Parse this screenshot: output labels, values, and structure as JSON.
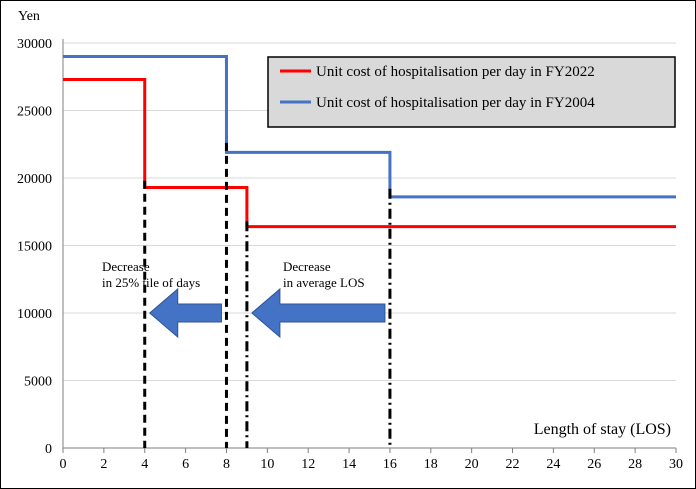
{
  "chart_data": {
    "type": "line",
    "step": true,
    "ylabel": "Yen",
    "xlabel": "Length of stay (LOS)",
    "xlim": [
      0,
      30
    ],
    "ylim": [
      0,
      30000
    ],
    "xticks": [
      0,
      2,
      4,
      6,
      8,
      10,
      12,
      14,
      16,
      18,
      20,
      22,
      24,
      26,
      28,
      30
    ],
    "yticks": [
      0,
      5000,
      10000,
      15000,
      20000,
      25000,
      30000
    ],
    "grid": "horizontal",
    "legend_position": "top-right",
    "series": [
      {
        "name": "Unit cost of hospitalisation per day in FY2022",
        "color": "#ff0000",
        "points": [
          [
            0,
            27300
          ],
          [
            4,
            27300
          ],
          [
            4,
            19300
          ],
          [
            9,
            19300
          ],
          [
            9,
            16400
          ],
          [
            30,
            16400
          ]
        ]
      },
      {
        "name": "Unit cost of hospitalisation per day in FY2004",
        "color": "#4472c4",
        "points": [
          [
            0,
            29000
          ],
          [
            8,
            29000
          ],
          [
            8,
            21900
          ],
          [
            16,
            21900
          ],
          [
            16,
            18600
          ],
          [
            30,
            18600
          ]
        ]
      }
    ],
    "reference_lines": [
      {
        "x": 4,
        "style": "dashed",
        "color": "#000000"
      },
      {
        "x": 8,
        "style": "dashed",
        "color": "#000000"
      },
      {
        "x": 9,
        "style": "dashdot",
        "color": "#000000"
      },
      {
        "x": 16,
        "style": "dashdot",
        "color": "#000000"
      }
    ],
    "annotations": [
      {
        "lines": [
          "Decrease",
          "in 25% tile  of days"
        ],
        "arrow": {
          "from_x": 8,
          "to_x": 4,
          "y": 10000,
          "color": "#4472c4",
          "direction": "left"
        }
      },
      {
        "lines": [
          "Decrease",
          "in average LOS"
        ],
        "arrow": {
          "from_x": 16,
          "to_x": 9,
          "y": 10000,
          "color": "#4472c4",
          "direction": "left"
        }
      }
    ]
  }
}
